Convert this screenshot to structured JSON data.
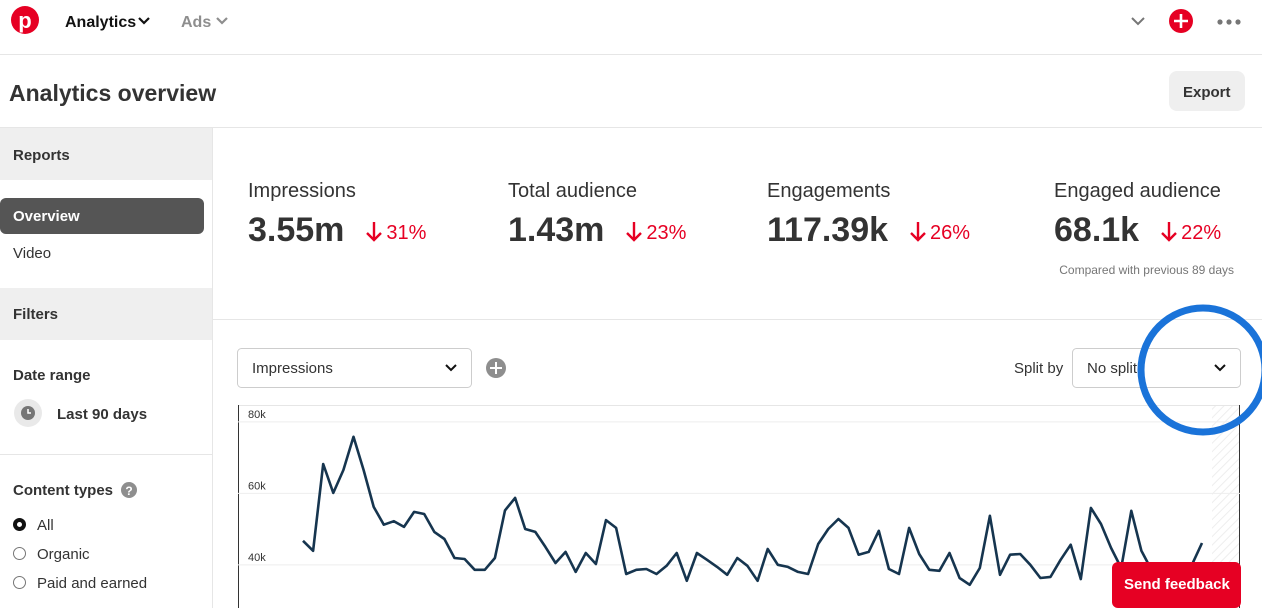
{
  "nav": {
    "items": [
      "Analytics",
      "Ads"
    ]
  },
  "header": {
    "title": "Analytics overview",
    "export": "Export"
  },
  "sidebar": {
    "reports": "Reports",
    "report_items": [
      "Overview",
      "Video"
    ],
    "filters": "Filters",
    "date_range": {
      "label": "Date range",
      "value": "Last 90 days"
    },
    "content_types": {
      "label": "Content types",
      "options": [
        "All",
        "Organic",
        "Paid and earned"
      ],
      "selected": 0
    }
  },
  "metrics": [
    {
      "label": "Impressions",
      "value": "3.55m",
      "change": "31%"
    },
    {
      "label": "Total audience",
      "value": "1.43m",
      "change": "23%"
    },
    {
      "label": "Engagements",
      "value": "117.39k",
      "change": "26%"
    },
    {
      "label": "Engaged audience",
      "value": "68.1k",
      "change": "22%"
    }
  ],
  "comparison_note": "Compared with previous 89 days",
  "controls": {
    "metric": "Impressions",
    "split_label": "Split by",
    "split": "No split"
  },
  "chart_data": {
    "type": "line",
    "color": "#16354f",
    "values": [
      44500,
      41700,
      66000,
      57900,
      64300,
      73600,
      64300,
      54000,
      49000,
      50000,
      48400,
      52600,
      52000,
      47000,
      45000,
      39700,
      39400,
      36400,
      36400,
      39700,
      53000,
      56500,
      47800,
      47000,
      42800,
      38300,
      41400,
      35800,
      41100,
      38000,
      50300,
      48100,
      35200,
      36400,
      36600,
      35200,
      37500,
      41100,
      33300,
      41100,
      39200,
      37200,
      35000,
      39700,
      37500,
      33300,
      42200,
      37800,
      37200,
      35800,
      35200,
      43600,
      47800,
      50600,
      48100,
      40600,
      41400,
      47300,
      36600,
      35200,
      48100,
      40800,
      36400,
      36100,
      41100,
      34100,
      32200,
      36900,
      51500,
      35000,
      40600,
      40800,
      37800,
      34100,
      34400,
      39200,
      43400,
      33800,
      53700,
      49200,
      42500,
      36900,
      52900,
      41700,
      36400,
      35000,
      35000,
      35800,
      37800,
      43900
    ],
    "ylim": [
      25700,
      82500
    ],
    "yticks": [
      {
        "value": 40000,
        "label": "40k"
      },
      {
        "value": 60000,
        "label": "60k"
      },
      {
        "value": 80000,
        "label": "80k"
      }
    ],
    "grid": true
  },
  "feedback": "Send feedback"
}
